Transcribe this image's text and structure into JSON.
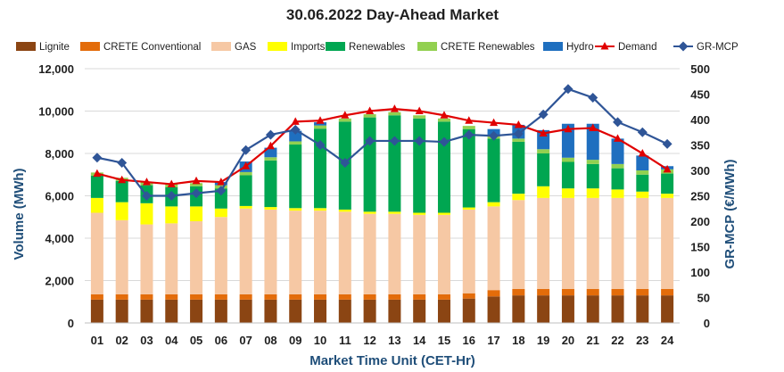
{
  "chart_data": {
    "type": "bar",
    "title": "30.06.2022  Day-Ahead Market",
    "xlabel": "Market Time Unit (CET-Hr)",
    "ylabel": "Volume (MWh)",
    "y2label": "GR-MCP (€/MWh)",
    "ylim": [
      0,
      12000
    ],
    "y2lim": [
      0,
      500
    ],
    "yticks": [
      "0",
      "2,000",
      "4,000",
      "6,000",
      "8,000",
      "10,000",
      "12,000"
    ],
    "y2ticks": [
      "0",
      "50",
      "100",
      "150",
      "200",
      "250",
      "300",
      "350",
      "400",
      "450",
      "500"
    ],
    "legend_position": "top",
    "categories": [
      "01",
      "02",
      "03",
      "04",
      "05",
      "06",
      "07",
      "08",
      "09",
      "10",
      "11",
      "12",
      "13",
      "14",
      "15",
      "16",
      "17",
      "18",
      "19",
      "20",
      "21",
      "22",
      "23",
      "24"
    ],
    "series": [
      {
        "name": "Lignite",
        "type": "bar",
        "color": "#8b4513",
        "values": [
          1100,
          1100,
          1100,
          1100,
          1100,
          1100,
          1100,
          1100,
          1100,
          1100,
          1100,
          1100,
          1100,
          1100,
          1100,
          1150,
          1250,
          1300,
          1300,
          1300,
          1300,
          1300,
          1300,
          1300
        ]
      },
      {
        "name": "CRETE Conventional",
        "type": "bar",
        "color": "#e36c0a",
        "values": [
          250,
          250,
          250,
          250,
          250,
          250,
          250,
          250,
          250,
          250,
          250,
          250,
          250,
          250,
          250,
          250,
          300,
          300,
          300,
          300,
          300,
          300,
          300,
          300
        ]
      },
      {
        "name": "GAS",
        "type": "bar",
        "color": "#f6c8a4",
        "values": [
          3850,
          3500,
          3300,
          3350,
          3450,
          3650,
          4050,
          4000,
          3950,
          3950,
          3900,
          3800,
          3800,
          3750,
          3750,
          3950,
          3950,
          4200,
          4300,
          4300,
          4300,
          4300,
          4300,
          4300
        ]
      },
      {
        "name": "Imports",
        "type": "bar",
        "color": "#ffff00",
        "values": [
          700,
          850,
          1000,
          800,
          700,
          400,
          120,
          120,
          120,
          120,
          100,
          100,
          100,
          100,
          100,
          100,
          200,
          300,
          550,
          450,
          450,
          400,
          300,
          200
        ]
      },
      {
        "name": "Renewables",
        "type": "bar",
        "color": "#00a651",
        "values": [
          1050,
          1000,
          850,
          900,
          950,
          950,
          1450,
          2200,
          3000,
          3750,
          4150,
          4450,
          4550,
          4450,
          4300,
          3700,
          3000,
          2450,
          1550,
          1250,
          1150,
          1000,
          800,
          950
        ]
      },
      {
        "name": "CRETE Renewables",
        "type": "bar",
        "color": "#92d050",
        "values": [
          150,
          150,
          150,
          150,
          150,
          150,
          150,
          150,
          150,
          150,
          150,
          150,
          150,
          150,
          150,
          150,
          150,
          150,
          200,
          200,
          200,
          200,
          200,
          200
        ]
      },
      {
        "name": "Hydro",
        "type": "bar",
        "color": "#1f6fbf",
        "values": [
          0,
          0,
          0,
          0,
          0,
          150,
          500,
          450,
          500,
          150,
          0,
          0,
          0,
          0,
          0,
          0,
          300,
          650,
          900,
          1600,
          1700,
          1200,
          700,
          150
        ]
      },
      {
        "name": "Demand",
        "type": "line",
        "color": "#e00000",
        "marker": "triangle",
        "values": [
          7050,
          6750,
          6650,
          6550,
          6700,
          6650,
          7400,
          8350,
          9500,
          9550,
          9800,
          10000,
          10100,
          10000,
          9800,
          9550,
          9450,
          9350,
          8950,
          9150,
          9200,
          8700,
          8000,
          7250
        ]
      },
      {
        "name": "GR-MCP",
        "type": "line",
        "axis": "right",
        "color": "#2f5597",
        "marker": "diamond",
        "values": [
          325,
          315,
          250,
          250,
          255,
          260,
          340,
          370,
          380,
          350,
          315,
          358,
          358,
          358,
          356,
          370,
          368,
          372,
          410,
          460,
          443,
          395,
          375,
          352
        ]
      }
    ]
  }
}
